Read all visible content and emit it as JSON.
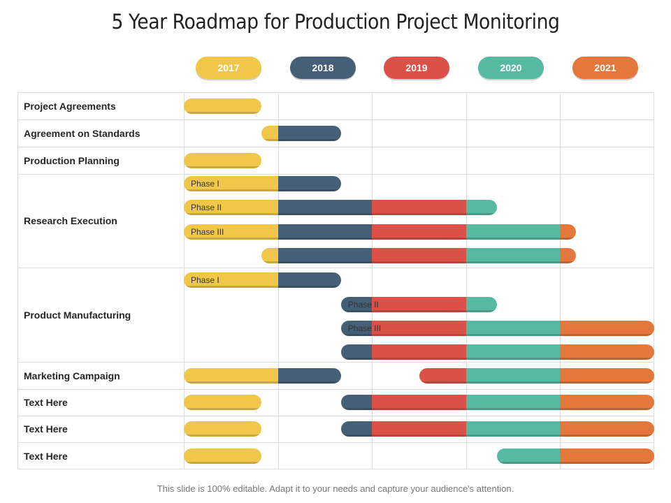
{
  "title": "5 Year Roadmap for Production Project Monitoring",
  "years": [
    {
      "label": "2017",
      "color": "#f1c74a"
    },
    {
      "label": "2018",
      "color": "#455f77"
    },
    {
      "label": "2019",
      "color": "#dc5147"
    },
    {
      "label": "2020",
      "color": "#57b9a1"
    },
    {
      "label": "2021",
      "color": "#e3773c"
    }
  ],
  "rows": [
    {
      "label": "Project Agreements"
    },
    {
      "label": "Agreement on Standards"
    },
    {
      "label": "Production Planning"
    },
    {
      "label": "Research Execution"
    },
    {
      "label": "Product Manufacturing"
    },
    {
      "label": "Marketing Campaign"
    },
    {
      "label": "Text Here"
    },
    {
      "label": "Text Here"
    },
    {
      "label": "Text Here"
    }
  ],
  "bars": [
    {
      "row": 0,
      "sub": 0,
      "start": 0.0,
      "end": 0.82,
      "label": ""
    },
    {
      "row": 1,
      "sub": 0,
      "start": 0.82,
      "end": 1.67,
      "label": ""
    },
    {
      "row": 2,
      "sub": 0,
      "start": 0.0,
      "end": 0.82,
      "label": ""
    },
    {
      "row": 3,
      "sub": 0,
      "start": 0.0,
      "end": 1.67,
      "label": "Phase I"
    },
    {
      "row": 3,
      "sub": 1,
      "start": 0.0,
      "end": 3.33,
      "label": "Phase II"
    },
    {
      "row": 3,
      "sub": 2,
      "start": 0.0,
      "end": 4.17,
      "label": "Phase III"
    },
    {
      "row": 3,
      "sub": 3,
      "start": 0.82,
      "end": 4.17,
      "label": ""
    },
    {
      "row": 4,
      "sub": 0,
      "start": 0.0,
      "end": 1.67,
      "label": "Phase I"
    },
    {
      "row": 4,
      "sub": 1,
      "start": 1.67,
      "end": 3.33,
      "label": "Phase II"
    },
    {
      "row": 4,
      "sub": 2,
      "start": 1.67,
      "end": 5.0,
      "label": "Phase III"
    },
    {
      "row": 4,
      "sub": 3,
      "start": 1.67,
      "end": 5.0,
      "label": ""
    },
    {
      "row": 5,
      "sub": 0,
      "start": 0.0,
      "end": 1.67,
      "label": ""
    },
    {
      "row": 5,
      "sub": 0,
      "start": 2.5,
      "end": 5.0,
      "label": ""
    },
    {
      "row": 6,
      "sub": 0,
      "start": 0.0,
      "end": 0.82,
      "label": ""
    },
    {
      "row": 6,
      "sub": 0,
      "start": 1.67,
      "end": 5.0,
      "label": ""
    },
    {
      "row": 7,
      "sub": 0,
      "start": 0.0,
      "end": 0.82,
      "label": ""
    },
    {
      "row": 7,
      "sub": 0,
      "start": 1.67,
      "end": 5.0,
      "label": ""
    },
    {
      "row": 8,
      "sub": 0,
      "start": 0.0,
      "end": 0.82,
      "label": ""
    },
    {
      "row": 8,
      "sub": 0,
      "start": 3.33,
      "end": 5.0,
      "label": ""
    }
  ],
  "footer": "This slide is 100% editable. Adapt it to your needs and capture your audience's attention."
}
